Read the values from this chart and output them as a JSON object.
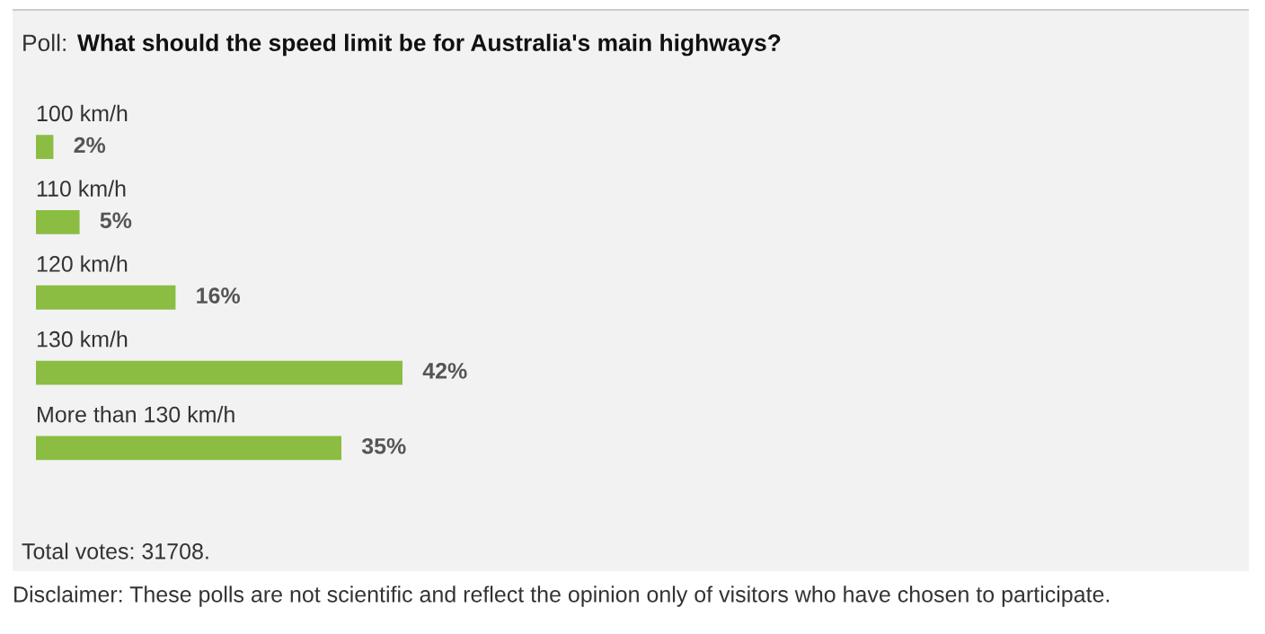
{
  "chart_data": {
    "type": "bar",
    "orientation": "horizontal",
    "title": "What should the speed limit be for Australia's main highways?",
    "categories": [
      "100 km/h",
      "110 km/h",
      "120 km/h",
      "130 km/h",
      "More than 130 km/h"
    ],
    "values": [
      2,
      5,
      16,
      42,
      35
    ],
    "value_labels": [
      "2%",
      "5%",
      "16%",
      "42%",
      "35%"
    ],
    "color": "#8bbd43",
    "annotations": [
      "Poll:",
      "Total votes: 31708.",
      "Disclaimer: These polls are not scientific and reflect the opinion only of visitors who have chosen to participate."
    ]
  }
}
